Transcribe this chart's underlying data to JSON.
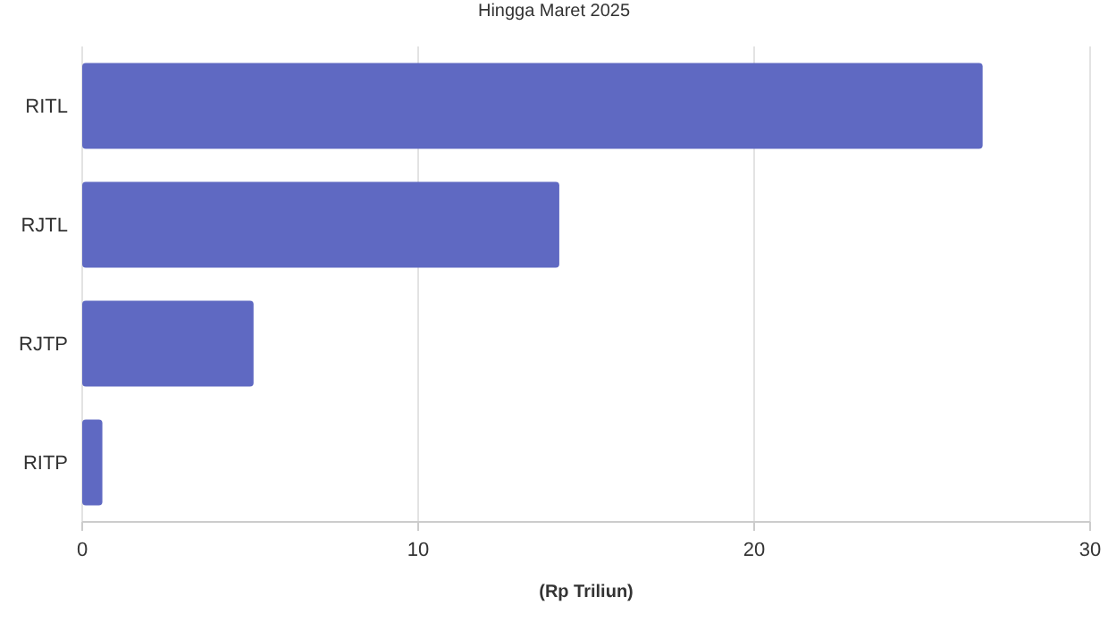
{
  "chart_data": {
    "type": "bar",
    "orientation": "horizontal",
    "title": "Hingga Maret 2025",
    "xlabel": "(Rp Triliun)",
    "categories": [
      "RITL",
      "RJTL",
      "RJTP",
      "RITP"
    ],
    "values": [
      26.8,
      14.2,
      5.1,
      0.6
    ],
    "color": "#5f69c2",
    "xlim": [
      0,
      30
    ],
    "xticks": [
      0,
      10,
      20,
      30
    ],
    "grid": "x"
  }
}
